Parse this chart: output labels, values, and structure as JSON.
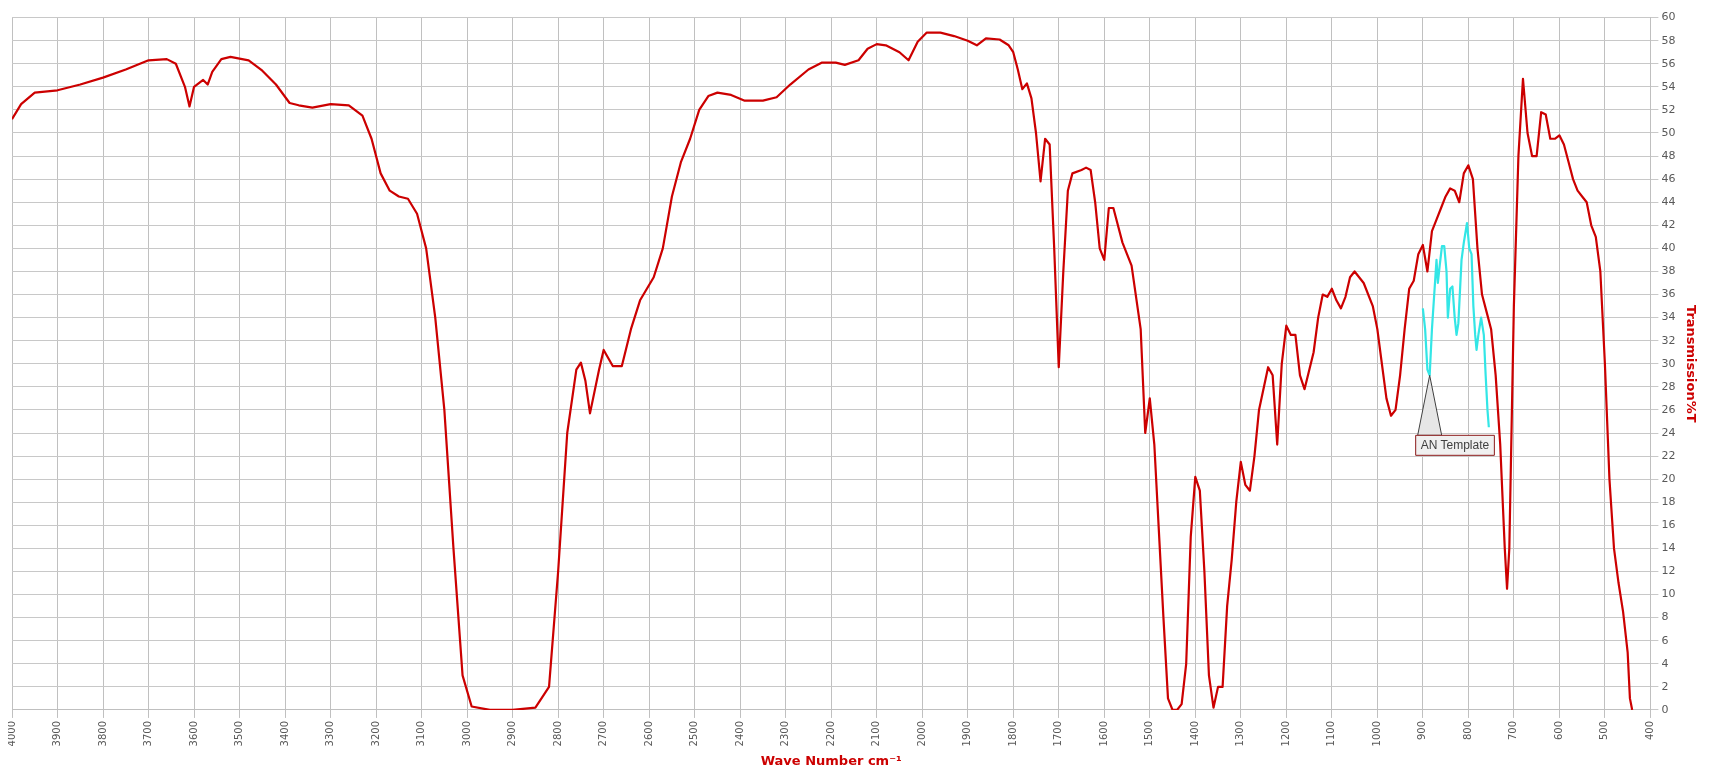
{
  "chart_data": {
    "type": "line",
    "xlabel": "Wave Number cm⁻¹",
    "ylabel": "Transmission%T",
    "xlim": [
      4000,
      400
    ],
    "ylim": [
      0,
      60
    ],
    "xticks": [
      4000,
      3900,
      3800,
      3700,
      3600,
      3500,
      3400,
      3300,
      3200,
      3100,
      3000,
      2900,
      2800,
      2700,
      2600,
      2500,
      2400,
      2300,
      2200,
      2100,
      2000,
      1900,
      1800,
      1700,
      1600,
      1500,
      1400,
      1300,
      1200,
      1100,
      1000,
      900,
      800,
      700,
      600,
      500,
      400
    ],
    "yticks": [
      0,
      2,
      4,
      6,
      8,
      10,
      12,
      14,
      16,
      18,
      20,
      22,
      24,
      26,
      28,
      30,
      32,
      34,
      36,
      38,
      40,
      42,
      44,
      46,
      48,
      50,
      52,
      54,
      56,
      58,
      60
    ],
    "grid": true,
    "legend": false,
    "marker": "none",
    "line_style": "solid",
    "annotations": [
      {
        "text": "AN Template",
        "x": 885,
        "y": 29
      }
    ],
    "series": [
      {
        "color": "#cc0000",
        "x": [
          4000,
          3980,
          3950,
          3900,
          3850,
          3800,
          3750,
          3700,
          3660,
          3640,
          3620,
          3610,
          3600,
          3580,
          3570,
          3560,
          3540,
          3520,
          3480,
          3450,
          3420,
          3390,
          3370,
          3340,
          3300,
          3260,
          3230,
          3210,
          3190,
          3170,
          3150,
          3130,
          3110,
          3090,
          3070,
          3050,
          3030,
          3010,
          2990,
          2950,
          2900,
          2850,
          2820,
          2800,
          2780,
          2760,
          2750,
          2740,
          2730,
          2710,
          2700,
          2690,
          2680,
          2660,
          2640,
          2620,
          2590,
          2570,
          2550,
          2530,
          2510,
          2490,
          2470,
          2450,
          2420,
          2390,
          2350,
          2320,
          2290,
          2250,
          2220,
          2190,
          2170,
          2140,
          2120,
          2100,
          2080,
          2050,
          2030,
          2010,
          1990,
          1960,
          1930,
          1900,
          1880,
          1860,
          1830,
          1810,
          1800,
          1790,
          1780,
          1770,
          1760,
          1750,
          1740,
          1730,
          1720,
          1710,
          1700,
          1690,
          1680,
          1670,
          1650,
          1640,
          1630,
          1620,
          1610,
          1600,
          1590,
          1580,
          1560,
          1540,
          1520,
          1510,
          1500,
          1490,
          1470,
          1460,
          1450,
          1440,
          1430,
          1420,
          1410,
          1400,
          1390,
          1380,
          1370,
          1360,
          1350,
          1340,
          1330,
          1320,
          1310,
          1300,
          1290,
          1280,
          1270,
          1260,
          1240,
          1230,
          1220,
          1210,
          1200,
          1190,
          1180,
          1170,
          1160,
          1140,
          1130,
          1120,
          1110,
          1100,
          1090,
          1080,
          1070,
          1060,
          1050,
          1030,
          1010,
          1000,
          990,
          980,
          970,
          960,
          950,
          940,
          930,
          920,
          910,
          900,
          890,
          880,
          870,
          860,
          850,
          840,
          830,
          820,
          810,
          800,
          790,
          780,
          770,
          760,
          750,
          740,
          730,
          720,
          715,
          710,
          700,
          690,
          680,
          670,
          660,
          650,
          640,
          630,
          620,
          610,
          600,
          590,
          580,
          570,
          560,
          550,
          540,
          530,
          520,
          510,
          500,
          490,
          480,
          470,
          460,
          450,
          445,
          440
        ],
        "values": [
          51.2,
          52.5,
          53.5,
          53.7,
          54.2,
          54.8,
          55.5,
          56.3,
          56.4,
          56,
          54,
          52.3,
          54,
          54.6,
          54.2,
          55.3,
          56.4,
          56.6,
          56.3,
          55.4,
          54.2,
          52.6,
          52.4,
          52.2,
          52.5,
          52.4,
          51.5,
          49.5,
          46.5,
          45,
          44.5,
          44.3,
          43,
          40,
          34,
          26,
          14,
          3,
          0.3,
          0,
          0,
          0.2,
          2,
          12,
          24,
          29.5,
          30.1,
          28.5,
          25.7,
          29.5,
          31.2,
          30.5,
          29.8,
          29.8,
          33,
          35.5,
          37.5,
          40,
          44.5,
          47.5,
          49.5,
          52,
          53.2,
          53.5,
          53.3,
          52.8,
          52.8,
          53.1,
          54.2,
          55.5,
          56.1,
          56.1,
          55.9,
          56.3,
          57.3,
          57.7,
          57.6,
          57,
          56.3,
          57.9,
          58.7,
          58.7,
          58.4,
          58,
          57.6,
          58.2,
          58.1,
          57.6,
          57,
          55.5,
          53.8,
          54.3,
          53,
          50,
          45.8,
          49.5,
          49,
          40,
          29.7,
          38,
          45,
          46.5,
          46.8,
          47,
          46.8,
          44,
          40,
          39,
          43.5,
          43.5,
          40.5,
          38.5,
          33,
          24,
          27,
          23,
          8,
          1,
          0,
          0,
          0.5,
          4,
          15,
          20.2,
          19,
          12,
          3,
          0.2,
          2,
          2,
          9,
          13,
          18,
          21.5,
          19.5,
          19,
          22,
          26,
          29.7,
          29,
          23,
          30,
          33.3,
          32.5,
          32.5,
          29,
          27.8,
          31,
          34,
          36,
          35.8,
          36.5,
          35.5,
          34.8,
          35.8,
          37.5,
          38,
          37,
          35,
          33,
          30,
          27,
          25.5,
          26,
          29,
          33,
          36.5,
          37.2,
          39.5,
          40.3,
          38,
          41.5,
          42.5,
          43.5,
          44.5,
          45.2,
          45,
          44,
          46.5,
          47.2,
          46,
          40,
          36,
          34.5,
          33,
          29,
          23,
          14,
          10.5,
          14,
          35,
          48,
          54.7,
          50,
          48,
          48,
          51.8,
          51.6,
          49.5,
          49.5,
          49.8,
          49,
          47.5,
          46,
          45,
          44.5,
          44,
          42,
          41,
          38,
          30,
          20,
          14,
          11,
          8.5,
          5,
          1,
          0
        ]
      },
      {
        "color": "#33e6e6",
        "x": [
          900,
          895,
          890,
          885,
          880,
          875,
          870,
          867,
          863,
          858,
          853,
          848,
          845,
          840,
          835,
          830,
          826,
          822,
          815,
          810,
          803,
          798,
          793,
          789,
          785,
          782,
          778,
          772,
          766,
          762,
          758,
          755
        ],
        "values": [
          34.8,
          33,
          29.5,
          29,
          33,
          36,
          39,
          37,
          38.5,
          40.2,
          40.2,
          38,
          34,
          36.5,
          36.7,
          34,
          32.5,
          33.5,
          39,
          40.5,
          42.2,
          40,
          39.5,
          35,
          32.5,
          31.2,
          32.5,
          34,
          32.5,
          29,
          26,
          24.5
        ]
      }
    ]
  }
}
